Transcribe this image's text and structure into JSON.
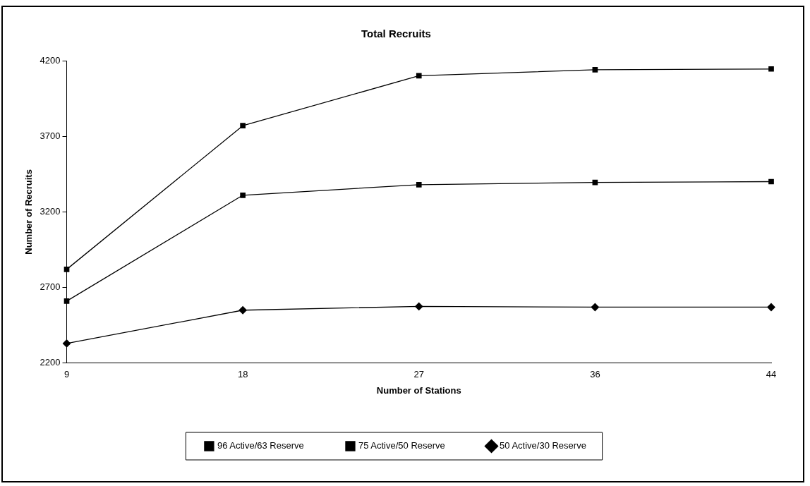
{
  "chart_data": {
    "type": "line",
    "title": "Total Recruits",
    "xlabel": "Number of Stations",
    "ylabel": "Number of Recruits",
    "categories": [
      "9",
      "18",
      "27",
      "36",
      "44"
    ],
    "series": [
      {
        "name": "96 Active/63 Reserve",
        "color": "#000000",
        "marker": "square",
        "values": [
          2820,
          3770,
          4100,
          4140,
          4145
        ]
      },
      {
        "name": "75 Active/50 Reserve",
        "color": "#000000",
        "marker": "square",
        "values": [
          2610,
          3310,
          3380,
          3395,
          3400
        ]
      },
      {
        "name": "50 Active/30 Reserve",
        "color": "#000000",
        "marker": "diamond",
        "values": [
          2330,
          2550,
          2575,
          2570,
          2570
        ]
      }
    ],
    "ylim": [
      2200,
      4200
    ],
    "yticks": [
      2200,
      2700,
      3200,
      3700,
      4200
    ],
    "grid": false,
    "legend": "bottom",
    "line_style": "solid"
  }
}
